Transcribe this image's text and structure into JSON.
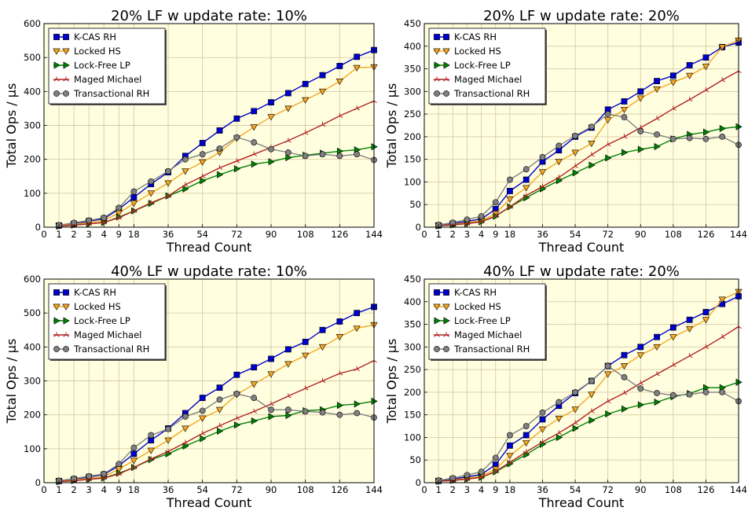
{
  "chart_data": [
    {
      "type": "line",
      "title": "20% LF w update rate: 10%",
      "xlabel": "Thread Count",
      "ylabel": "Total Ops / μs",
      "ylim": [
        0,
        600
      ],
      "yticks": [
        0,
        100,
        200,
        300,
        400,
        500,
        600
      ],
      "xtick_labels": [
        "0",
        "1",
        "2",
        "3",
        "4",
        "9",
        "18",
        "36",
        "54",
        "72",
        "90",
        "108",
        "126",
        "144"
      ],
      "grid": true,
      "legend": "top-left",
      "series": [
        {
          "name": "K-CAS RH",
          "color": "#0000cc",
          "marker": "square",
          "x": [
            1,
            2,
            3,
            4,
            9,
            18,
            27,
            36,
            45,
            54,
            63,
            72,
            81,
            90,
            99,
            108,
            117,
            126,
            135,
            144
          ],
          "y": [
            5,
            10,
            18,
            25,
            53,
            88,
            127,
            162,
            210,
            248,
            285,
            320,
            342,
            368,
            395,
            422,
            448,
            475,
            502,
            522
          ]
        },
        {
          "name": "Locked HS",
          "color": "#f5a623",
          "marker": "triangle-down",
          "x": [
            1,
            2,
            3,
            4,
            9,
            18,
            27,
            36,
            45,
            54,
            63,
            72,
            81,
            90,
            99,
            108,
            117,
            126,
            135,
            144
          ],
          "y": [
            4,
            8,
            14,
            20,
            42,
            70,
            100,
            130,
            165,
            192,
            220,
            262,
            295,
            325,
            350,
            375,
            400,
            430,
            470,
            472
          ]
        },
        {
          "name": "Lock-Free LP",
          "color": "#008000",
          "marker": "triangle-right",
          "x": [
            1,
            2,
            3,
            4,
            9,
            18,
            27,
            36,
            45,
            54,
            63,
            72,
            81,
            90,
            99,
            108,
            117,
            126,
            135,
            144
          ],
          "y": [
            3,
            6,
            10,
            14,
            30,
            48,
            70,
            92,
            113,
            137,
            155,
            172,
            186,
            193,
            205,
            212,
            218,
            224,
            228,
            237
          ]
        },
        {
          "name": "Maged Michael",
          "color": "#b22222",
          "marker": "tri",
          "x": [
            1,
            2,
            3,
            4,
            9,
            18,
            27,
            36,
            45,
            54,
            63,
            72,
            81,
            90,
            99,
            108,
            117,
            126,
            135,
            144
          ],
          "y": [
            3,
            6,
            10,
            14,
            28,
            48,
            72,
            92,
            125,
            150,
            175,
            195,
            215,
            235,
            255,
            278,
            302,
            328,
            350,
            372
          ]
        },
        {
          "name": "Transactional RH",
          "color": "#808080",
          "marker": "circle",
          "x": [
            1,
            2,
            3,
            4,
            9,
            18,
            27,
            36,
            45,
            54,
            63,
            72,
            81,
            90,
            99,
            108,
            117,
            126,
            135,
            144
          ],
          "y": [
            6,
            13,
            20,
            28,
            57,
            105,
            135,
            165,
            200,
            215,
            232,
            265,
            250,
            230,
            220,
            210,
            215,
            210,
            215,
            198
          ]
        }
      ]
    },
    {
      "type": "line",
      "title": "20% LF w update rate: 20%",
      "xlabel": "Thread Count",
      "ylabel": "Total Ops / μs",
      "ylim": [
        0,
        450
      ],
      "yticks": [
        0,
        50,
        100,
        150,
        200,
        250,
        300,
        350,
        400,
        450
      ],
      "xtick_labels": [
        "0",
        "1",
        "2",
        "3",
        "4",
        "9",
        "18",
        "36",
        "54",
        "72",
        "90",
        "108",
        "126",
        "144"
      ],
      "grid": true,
      "legend": "top-left",
      "series": [
        {
          "name": "K-CAS RH",
          "color": "#0000cc",
          "marker": "square",
          "x": [
            1,
            2,
            3,
            4,
            9,
            18,
            27,
            36,
            45,
            54,
            63,
            72,
            81,
            90,
            99,
            108,
            117,
            126,
            135,
            144
          ],
          "y": [
            4,
            8,
            13,
            18,
            40,
            80,
            105,
            145,
            170,
            200,
            220,
            260,
            278,
            300,
            323,
            335,
            358,
            375,
            398,
            408
          ]
        },
        {
          "name": "Locked HS",
          "color": "#f5a623",
          "marker": "triangle-down",
          "x": [
            1,
            2,
            3,
            4,
            9,
            18,
            27,
            36,
            45,
            54,
            63,
            72,
            81,
            90,
            99,
            108,
            117,
            126,
            135,
            144
          ],
          "y": [
            3,
            6,
            10,
            14,
            30,
            62,
            87,
            122,
            145,
            165,
            185,
            237,
            260,
            285,
            305,
            320,
            335,
            355,
            398,
            413
          ]
        },
        {
          "name": "Lock-Free LP",
          "color": "#008000",
          "marker": "triangle-right",
          "x": [
            1,
            2,
            3,
            4,
            9,
            18,
            27,
            36,
            45,
            54,
            63,
            72,
            81,
            90,
            99,
            108,
            117,
            126,
            135,
            144
          ],
          "y": [
            3,
            5,
            8,
            12,
            24,
            45,
            65,
            85,
            103,
            120,
            137,
            153,
            165,
            172,
            178,
            195,
            205,
            210,
            218,
            222
          ]
        },
        {
          "name": "Maged Michael",
          "color": "#b22222",
          "marker": "tri",
          "x": [
            1,
            2,
            3,
            4,
            9,
            18,
            27,
            36,
            45,
            54,
            63,
            72,
            81,
            90,
            99,
            108,
            117,
            126,
            135,
            144
          ],
          "y": [
            3,
            5,
            8,
            12,
            25,
            45,
            70,
            90,
            110,
            135,
            160,
            183,
            200,
            220,
            240,
            262,
            282,
            303,
            325,
            345
          ]
        },
        {
          "name": "Transactional RH",
          "color": "#808080",
          "marker": "circle",
          "x": [
            1,
            2,
            3,
            4,
            9,
            18,
            27,
            36,
            45,
            54,
            63,
            72,
            81,
            90,
            99,
            108,
            117,
            126,
            135,
            144
          ],
          "y": [
            5,
            10,
            17,
            24,
            55,
            105,
            128,
            155,
            180,
            202,
            222,
            250,
            243,
            212,
            205,
            195,
            197,
            195,
            200,
            182
          ]
        }
      ]
    },
    {
      "type": "line",
      "title": "40% LF w update rate: 10%",
      "xlabel": "Thread Count",
      "ylabel": "Total Ops / μs",
      "ylim": [
        0,
        600
      ],
      "yticks": [
        0,
        100,
        200,
        300,
        400,
        500,
        600
      ],
      "xtick_labels": [
        "0",
        "1",
        "2",
        "3",
        "4",
        "9",
        "18",
        "36",
        "54",
        "72",
        "90",
        "108",
        "126",
        "144"
      ],
      "grid": true,
      "legend": "top-left",
      "series": [
        {
          "name": "K-CAS RH",
          "color": "#0000cc",
          "marker": "square",
          "x": [
            1,
            2,
            3,
            4,
            9,
            18,
            27,
            36,
            45,
            54,
            63,
            72,
            81,
            90,
            99,
            108,
            117,
            126,
            135,
            144
          ],
          "y": [
            5,
            10,
            17,
            24,
            50,
            85,
            125,
            160,
            205,
            250,
            280,
            318,
            340,
            365,
            393,
            415,
            450,
            475,
            500,
            518
          ]
        },
        {
          "name": "Locked HS",
          "color": "#f5a623",
          "marker": "triangle-down",
          "x": [
            1,
            2,
            3,
            4,
            9,
            18,
            27,
            36,
            45,
            54,
            63,
            72,
            81,
            90,
            99,
            108,
            117,
            126,
            135,
            144
          ],
          "y": [
            4,
            8,
            13,
            18,
            40,
            65,
            95,
            125,
            160,
            190,
            215,
            260,
            290,
            320,
            350,
            375,
            400,
            430,
            455,
            465
          ]
        },
        {
          "name": "Lock-Free LP",
          "color": "#008000",
          "marker": "triangle-right",
          "x": [
            1,
            2,
            3,
            4,
            9,
            18,
            27,
            36,
            45,
            54,
            63,
            72,
            81,
            90,
            99,
            108,
            117,
            126,
            135,
            144
          ],
          "y": [
            3,
            6,
            10,
            14,
            28,
            45,
            68,
            85,
            108,
            130,
            152,
            170,
            182,
            195,
            198,
            212,
            215,
            228,
            232,
            240
          ]
        },
        {
          "name": "Maged Michael",
          "color": "#b22222",
          "marker": "tri",
          "x": [
            1,
            2,
            3,
            4,
            9,
            18,
            27,
            36,
            45,
            54,
            63,
            72,
            81,
            90,
            99,
            108,
            117,
            126,
            135,
            144
          ],
          "y": [
            3,
            6,
            10,
            14,
            26,
            45,
            70,
            92,
            118,
            145,
            168,
            190,
            210,
            232,
            255,
            278,
            300,
            322,
            335,
            360
          ]
        },
        {
          "name": "Transactional RH",
          "color": "#808080",
          "marker": "circle",
          "x": [
            1,
            2,
            3,
            4,
            9,
            18,
            27,
            36,
            45,
            54,
            63,
            72,
            81,
            90,
            99,
            108,
            117,
            126,
            135,
            144
          ],
          "y": [
            6,
            12,
            19,
            26,
            55,
            103,
            140,
            158,
            195,
            212,
            245,
            262,
            250,
            215,
            215,
            210,
            207,
            200,
            205,
            192
          ]
        }
      ]
    },
    {
      "type": "line",
      "title": "40% LF w update rate: 20%",
      "xlabel": "Thread Count",
      "ylabel": "Total Ops / μs",
      "ylim": [
        0,
        450
      ],
      "yticks": [
        0,
        50,
        100,
        150,
        200,
        250,
        300,
        350,
        400,
        450
      ],
      "xtick_labels": [
        "0",
        "1",
        "2",
        "3",
        "4",
        "9",
        "18",
        "36",
        "54",
        "72",
        "90",
        "108",
        "126",
        "144"
      ],
      "grid": true,
      "legend": "top-left",
      "series": [
        {
          "name": "K-CAS RH",
          "color": "#0000cc",
          "marker": "square",
          "x": [
            1,
            2,
            3,
            4,
            9,
            18,
            27,
            36,
            45,
            54,
            63,
            72,
            81,
            90,
            99,
            108,
            117,
            126,
            135,
            144
          ],
          "y": [
            4,
            8,
            13,
            18,
            40,
            82,
            105,
            140,
            170,
            198,
            225,
            258,
            282,
            300,
            322,
            343,
            360,
            377,
            395,
            412
          ]
        },
        {
          "name": "Locked HS",
          "color": "#f5a623",
          "marker": "triangle-down",
          "x": [
            1,
            2,
            3,
            4,
            9,
            18,
            27,
            36,
            45,
            54,
            63,
            72,
            81,
            90,
            99,
            108,
            117,
            126,
            135,
            144
          ],
          "y": [
            3,
            6,
            10,
            14,
            30,
            60,
            88,
            118,
            142,
            162,
            195,
            240,
            258,
            282,
            300,
            322,
            340,
            360,
            405,
            422
          ]
        },
        {
          "name": "Lock-Free LP",
          "color": "#008000",
          "marker": "triangle-right",
          "x": [
            1,
            2,
            3,
            4,
            9,
            18,
            27,
            36,
            45,
            54,
            63,
            72,
            81,
            90,
            99,
            108,
            117,
            126,
            135,
            144
          ],
          "y": [
            3,
            5,
            8,
            12,
            24,
            42,
            62,
            85,
            100,
            120,
            138,
            152,
            163,
            172,
            178,
            190,
            197,
            210,
            210,
            222
          ]
        },
        {
          "name": "Maged Michael",
          "color": "#b22222",
          "marker": "tri",
          "x": [
            1,
            2,
            3,
            4,
            9,
            18,
            27,
            36,
            45,
            54,
            63,
            72,
            81,
            90,
            99,
            108,
            117,
            126,
            135,
            144
          ],
          "y": [
            3,
            5,
            8,
            12,
            25,
            45,
            68,
            90,
            110,
            132,
            158,
            180,
            198,
            220,
            240,
            260,
            280,
            300,
            322,
            345
          ]
        },
        {
          "name": "Transactional RH",
          "color": "#808080",
          "marker": "circle",
          "x": [
            1,
            2,
            3,
            4,
            9,
            18,
            27,
            36,
            45,
            54,
            63,
            72,
            81,
            90,
            99,
            108,
            117,
            126,
            135,
            144
          ],
          "y": [
            5,
            10,
            17,
            24,
            55,
            105,
            125,
            155,
            178,
            200,
            225,
            258,
            233,
            208,
            198,
            193,
            195,
            200,
            200,
            180
          ]
        }
      ]
    }
  ],
  "style": {
    "plot_background": "#ffffe0",
    "grid_color": "#d9c9a3"
  }
}
